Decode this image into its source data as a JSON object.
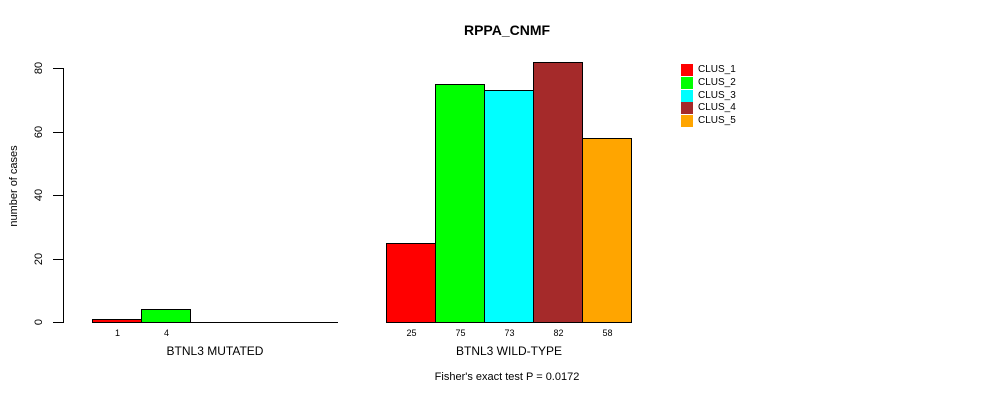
{
  "chart_data": {
    "type": "bar",
    "title": "RPPA_CNMF",
    "ylabel": "number of cases",
    "ylim": [
      0,
      80
    ],
    "yticks": [
      0,
      20,
      40,
      60,
      80
    ],
    "grid": false,
    "legend_position": "top-right",
    "categories": [
      "BTNL3 MUTATED",
      "BTNL3 WILD-TYPE"
    ],
    "series": [
      {
        "name": "CLUS_1",
        "color": "#ff0000",
        "values": [
          1,
          25
        ]
      },
      {
        "name": "CLUS_2",
        "color": "#00ff00",
        "values": [
          4,
          75
        ]
      },
      {
        "name": "CLUS_3",
        "color": "#00ffff",
        "values": [
          0,
          73
        ]
      },
      {
        "name": "CLUS_4",
        "color": "#a52a2a",
        "values": [
          0,
          82
        ]
      },
      {
        "name": "CLUS_5",
        "color": "#ffa500",
        "values": [
          0,
          58
        ]
      }
    ],
    "annotation": "Fisher's exact test P = 0.0172"
  }
}
